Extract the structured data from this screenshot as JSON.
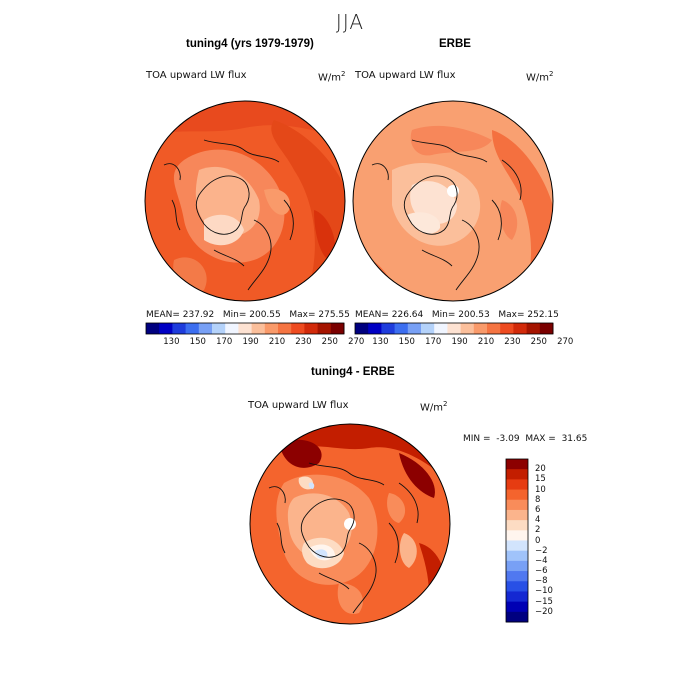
{
  "season": "JJA",
  "panel1": {
    "title": "tuning4 (yrs 1979-1979)",
    "variable": "TOA upward LW flux",
    "units": "W/m",
    "units_exp": "2",
    "mean_label": "MEAN=",
    "mean": "237.92",
    "min_label": "Min=",
    "min": "200.55",
    "max_label": "Max=",
    "max": "275.55"
  },
  "panel2": {
    "title": "ERBE",
    "variable": "TOA upward LW flux",
    "units": "W/m",
    "units_exp": "2",
    "mean_label": "MEAN=",
    "mean": "226.64",
    "min_label": "Min=",
    "min": "200.53",
    "max_label": "Max=",
    "max": "252.15"
  },
  "colorbar_top": {
    "colors": [
      "#00007f",
      "#0000c4",
      "#1e3cdc",
      "#3c6ef0",
      "#78a0f5",
      "#b4d2fa",
      "#f0f5ff",
      "#fde2d2",
      "#fbbf9b",
      "#f99a6a",
      "#f57442",
      "#ee4b20",
      "#d22a0a",
      "#a51400",
      "#7a0000"
    ],
    "ticks": [
      "130",
      "150",
      "170",
      "190",
      "210",
      "230",
      "250",
      "270"
    ]
  },
  "panel3": {
    "title": "tuning4 - ERBE",
    "variable": "TOA upward LW flux",
    "units": "W/m",
    "units_exp": "2",
    "min_label": "MIN =",
    "min": "-3.09",
    "max_label": "MAX =",
    "max": "31.65"
  },
  "colorbar_diff": {
    "colors": [
      "#000080",
      "#0000b4",
      "#1428d2",
      "#2850e6",
      "#5078f0",
      "#78a0f5",
      "#a0c3fa",
      "#d2e4fd",
      "#fff5ee",
      "#fddcc3",
      "#fbb48c",
      "#f98c5a",
      "#f4642d",
      "#e63c12",
      "#c31e00",
      "#8c0000"
    ],
    "ticks": [
      "20",
      "15",
      "10",
      "8",
      "6",
      "4",
      "2",
      "0",
      "−2",
      "−4",
      "−6",
      "−8",
      "−10",
      "−15",
      "−20"
    ]
  }
}
